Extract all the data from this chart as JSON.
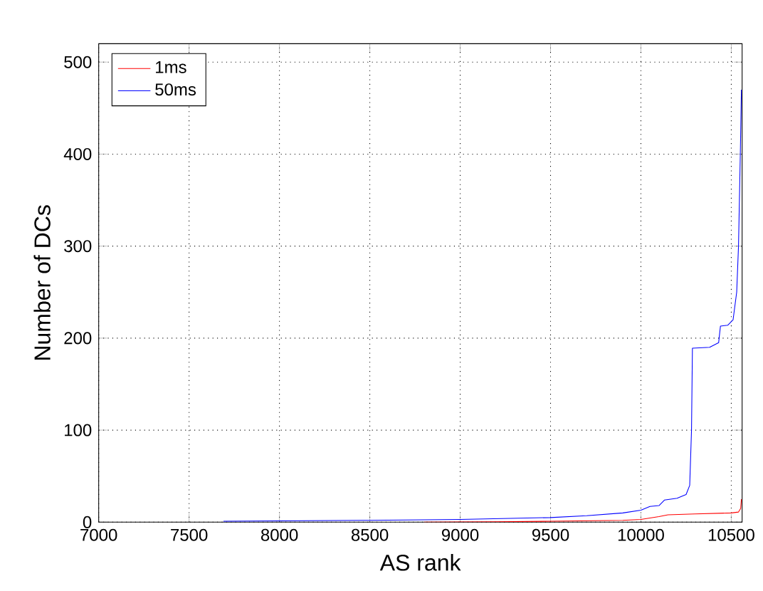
{
  "chart_data": {
    "type": "line",
    "xlabel": "AS rank",
    "ylabel": "Number of DCs",
    "xlim": [
      7000,
      10560
    ],
    "ylim": [
      0,
      520
    ],
    "xticks": [
      7000,
      7500,
      8000,
      8500,
      9000,
      9500,
      10000,
      10500
    ],
    "yticks": [
      0,
      100,
      200,
      300,
      400,
      500
    ],
    "grid": true,
    "legend": "top left",
    "marker": "none",
    "line_style": "solid",
    "series": [
      {
        "name": "1ms",
        "color": "#ff0000",
        "x": [
          8800,
          9200,
          9500,
          9900,
          10000,
          10100,
          10150,
          10300,
          10500,
          10540,
          10552,
          10556
        ],
        "values": [
          0,
          0.5,
          1,
          2,
          3,
          6,
          8,
          9,
          10,
          11,
          15,
          25
        ]
      },
      {
        "name": "50ms",
        "color": "#0000ff",
        "x": [
          7690,
          8500,
          9000,
          9500,
          9700,
          9900,
          10000,
          10050,
          10100,
          10130,
          10200,
          10250,
          10270,
          10280,
          10285,
          10380,
          10430,
          10440,
          10480,
          10510,
          10530,
          10540,
          10550,
          10556
        ],
        "values": [
          1,
          2,
          3,
          5,
          7,
          10,
          13,
          17,
          18,
          24,
          26,
          30,
          40,
          100,
          189,
          190,
          195,
          213,
          214,
          220,
          250,
          300,
          400,
          470
        ]
      }
    ]
  }
}
